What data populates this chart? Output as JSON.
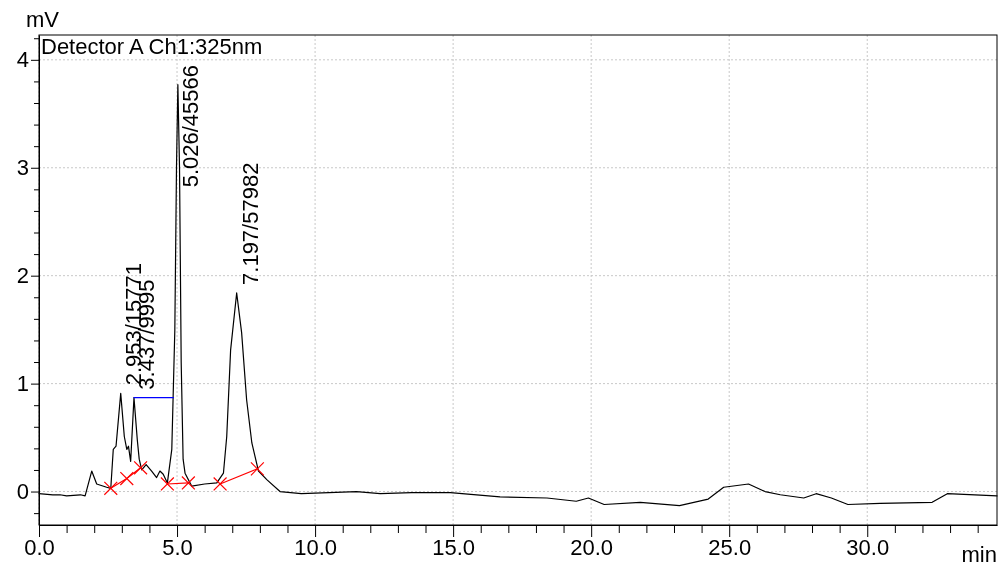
{
  "chart_data": {
    "type": "line",
    "title": "Detector A Ch1:325nm",
    "xlabel": "min",
    "ylabel": "mV",
    "xlim": [
      0,
      34.7
    ],
    "ylim": [
      -0.31,
      4.23
    ],
    "xticks": [
      {
        "value": 0,
        "label": "0.0"
      },
      {
        "value": 1,
        "label": null
      },
      {
        "value": 2,
        "label": null
      },
      {
        "value": 3,
        "label": null
      },
      {
        "value": 4,
        "label": null
      },
      {
        "value": 5,
        "label": "5.0"
      },
      {
        "value": 6,
        "label": null
      },
      {
        "value": 7,
        "label": null
      },
      {
        "value": 8,
        "label": null
      },
      {
        "value": 9,
        "label": null
      },
      {
        "value": 10,
        "label": "10.0"
      },
      {
        "value": 11,
        "label": null
      },
      {
        "value": 12,
        "label": null
      },
      {
        "value": 13,
        "label": null
      },
      {
        "value": 14,
        "label": null
      },
      {
        "value": 15,
        "label": "15.0"
      },
      {
        "value": 16,
        "label": null
      },
      {
        "value": 17,
        "label": null
      },
      {
        "value": 18,
        "label": null
      },
      {
        "value": 19,
        "label": null
      },
      {
        "value": 20,
        "label": "20.0"
      },
      {
        "value": 21,
        "label": null
      },
      {
        "value": 22,
        "label": null
      },
      {
        "value": 23,
        "label": null
      },
      {
        "value": 24,
        "label": null
      },
      {
        "value": 25,
        "label": "25.0"
      },
      {
        "value": 26,
        "label": null
      },
      {
        "value": 27,
        "label": null
      },
      {
        "value": 28,
        "label": null
      },
      {
        "value": 29,
        "label": null
      },
      {
        "value": 30,
        "label": "30.0"
      },
      {
        "value": 31,
        "label": null
      },
      {
        "value": 32,
        "label": null
      },
      {
        "value": 33,
        "label": null
      },
      {
        "value": 34,
        "label": null
      }
    ],
    "yticks": [
      {
        "value": -0.2,
        "label": null
      },
      0,
      {
        "value": 0.2,
        "label": null
      },
      {
        "value": 0.4,
        "label": null
      },
      {
        "value": 0.6,
        "label": null
      },
      {
        "value": 0.8,
        "label": null
      },
      1,
      {
        "value": 1.2,
        "label": null
      },
      {
        "value": 1.4,
        "label": null
      },
      {
        "value": 1.6,
        "label": null
      },
      {
        "value": 1.8,
        "label": null
      },
      2,
      {
        "value": 2.2,
        "label": null
      },
      {
        "value": 2.4,
        "label": null
      },
      {
        "value": 2.6,
        "label": null
      },
      {
        "value": 2.8,
        "label": null
      },
      3,
      {
        "value": 3.2,
        "label": null
      },
      {
        "value": 3.4,
        "label": null
      },
      {
        "value": 3.6,
        "label": null
      },
      {
        "value": 3.8,
        "label": null
      },
      4,
      {
        "value": 4.2,
        "label": null
      }
    ],
    "grid": true,
    "line_style": "solid",
    "series": [
      {
        "color": "#000000",
        "marker": "none",
        "x": [
          0,
          0.5,
          0.76,
          1.0,
          1.5,
          1.67,
          1.91,
          2.09,
          2.45,
          2.6,
          2.69,
          2.79,
          2.96,
          3.09,
          3.18,
          3.24,
          3.32,
          3.44,
          3.56,
          3.63,
          3.72,
          3.88,
          4.08,
          4.26,
          4.38,
          4.5,
          4.65,
          4.81,
          4.92,
          4.98,
          5.03,
          5.09,
          5.15,
          5.22,
          5.29,
          5.53,
          6.0,
          6.44,
          6.68,
          6.8,
          6.94,
          7.16,
          7.34,
          7.52,
          7.71,
          7.95,
          8.25,
          8.73,
          9.5,
          10.5,
          11.5,
          12.36,
          13.5,
          14.9,
          16.7,
          18.4,
          19.46,
          19.9,
          20.47,
          21.78,
          23.2,
          24.24,
          24.8,
          25.7,
          26.3,
          26.85,
          27.7,
          28.15,
          28.7,
          29.3,
          30.47,
          32.35,
          32.9,
          34.7
        ],
        "values": [
          -0.02,
          -0.03,
          -0.03,
          -0.04,
          -0.03,
          -0.04,
          0.19,
          0.07,
          0.04,
          0.03,
          0.39,
          0.42,
          0.91,
          0.51,
          0.39,
          0.42,
          0.28,
          0.87,
          0.48,
          0.3,
          0.2,
          0.25,
          0.19,
          0.13,
          0.19,
          0.16,
          0.08,
          0.39,
          1.5,
          3.0,
          3.77,
          3.0,
          1.2,
          0.3,
          0.17,
          0.05,
          0.07,
          0.08,
          0.17,
          0.51,
          1.31,
          1.84,
          1.47,
          0.85,
          0.45,
          0.19,
          0.11,
          0.0,
          -0.02,
          -0.01,
          0.0,
          -0.02,
          -0.01,
          -0.01,
          -0.05,
          -0.06,
          -0.09,
          -0.06,
          -0.12,
          -0.1,
          -0.13,
          -0.07,
          0.04,
          0.07,
          0.0,
          -0.03,
          -0.06,
          -0.02,
          -0.06,
          -0.12,
          -0.11,
          -0.1,
          -0.02,
          -0.04
        ]
      },
      {
        "color": "#ff0000",
        "marker": "cross",
        "x": [
          2.6,
          3.18,
          3.68,
          4.0,
          4.65,
          5.41,
          6.0,
          6.56,
          7.91
        ],
        "values": [
          0.03,
          0.12,
          0.22,
          null,
          0.07,
          0.08,
          null,
          0.07,
          0.21
        ]
      },
      {
        "color": "#0000ff",
        "marker": "none",
        "x": [
          3.44,
          4.87
        ],
        "values": [
          0.87,
          0.87
        ]
      }
    ],
    "annotations": [
      {
        "text": "2.953/15771",
        "x": 2.953,
        "y": 0.91
      },
      {
        "text": "3.437/9995",
        "x": 3.437,
        "y": 0.87
      },
      {
        "text": "5.026/45566",
        "x": 5.026,
        "y": 3.77
      },
      {
        "text": "7.197/57982",
        "x": 7.197,
        "y": 1.84
      }
    ]
  }
}
